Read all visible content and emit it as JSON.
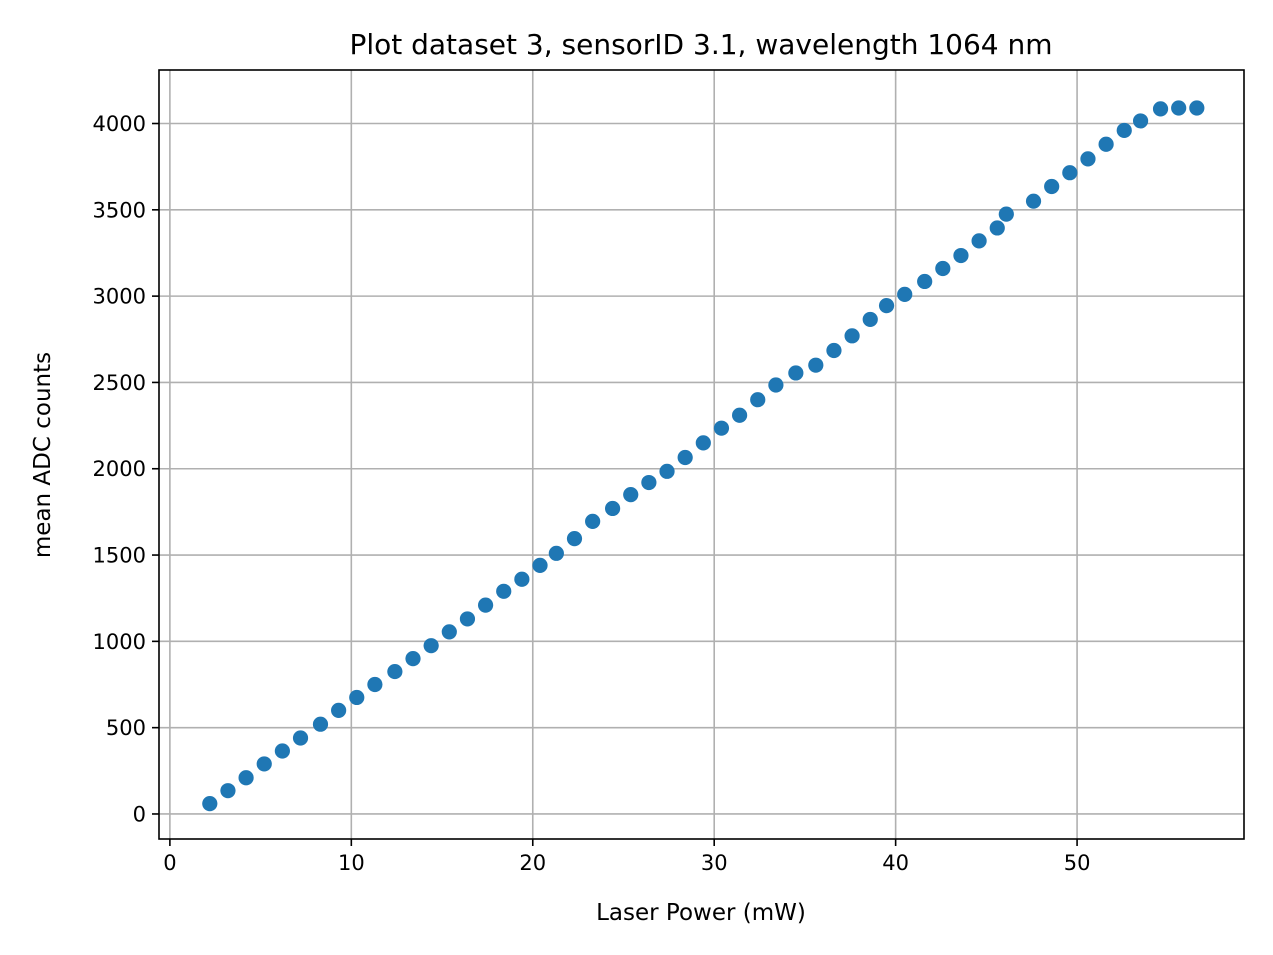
{
  "chart_data": {
    "type": "scatter",
    "title": "Plot dataset 3, sensorID 3.1, wavelength 1064 nm",
    "xlabel": "Laser Power (mW)",
    "ylabel": "mean ADC counts",
    "xlim": [
      -0.6,
      59.2
    ],
    "ylim": [
      -145,
      4310
    ],
    "xticks": [
      0,
      10,
      20,
      30,
      40,
      50
    ],
    "yticks": [
      0,
      500,
      1000,
      1500,
      2000,
      2500,
      3000,
      3500,
      4000
    ],
    "grid": true,
    "marker_color": "#1f77b4",
    "series": [
      {
        "x": [
          2.2,
          3.2,
          4.2,
          5.2,
          6.2,
          7.2,
          8.3,
          9.3,
          10.3,
          11.3,
          12.4,
          13.4,
          14.4,
          15.4,
          16.4,
          17.4,
          18.4,
          19.4,
          20.4,
          21.3,
          22.3,
          23.3,
          24.4,
          25.4,
          26.4,
          27.4,
          28.4,
          29.4,
          30.4,
          31.4,
          32.4,
          33.4,
          34.5,
          35.6,
          36.6,
          37.6,
          38.6,
          39.5,
          40.5,
          41.6,
          42.6,
          43.6,
          44.6,
          45.6,
          46.1,
          47.6,
          48.6,
          49.6,
          50.6,
          51.6,
          52.6,
          53.5,
          54.6,
          55.6,
          56.6
        ],
        "y": [
          60,
          135,
          210,
          290,
          365,
          440,
          520,
          600,
          675,
          750,
          825,
          900,
          975,
          1055,
          1130,
          1210,
          1290,
          1360,
          1440,
          1510,
          1595,
          1695,
          1770,
          1850,
          1920,
          1985,
          2065,
          2150,
          2235,
          2310,
          2400,
          2485,
          2555,
          2600,
          2685,
          2770,
          2865,
          2945,
          3010,
          3085,
          3160,
          3235,
          3320,
          3395,
          3475,
          3550,
          3635,
          3715,
          3795,
          3880,
          3960,
          4015,
          4085,
          4090,
          4090
        ]
      }
    ]
  }
}
